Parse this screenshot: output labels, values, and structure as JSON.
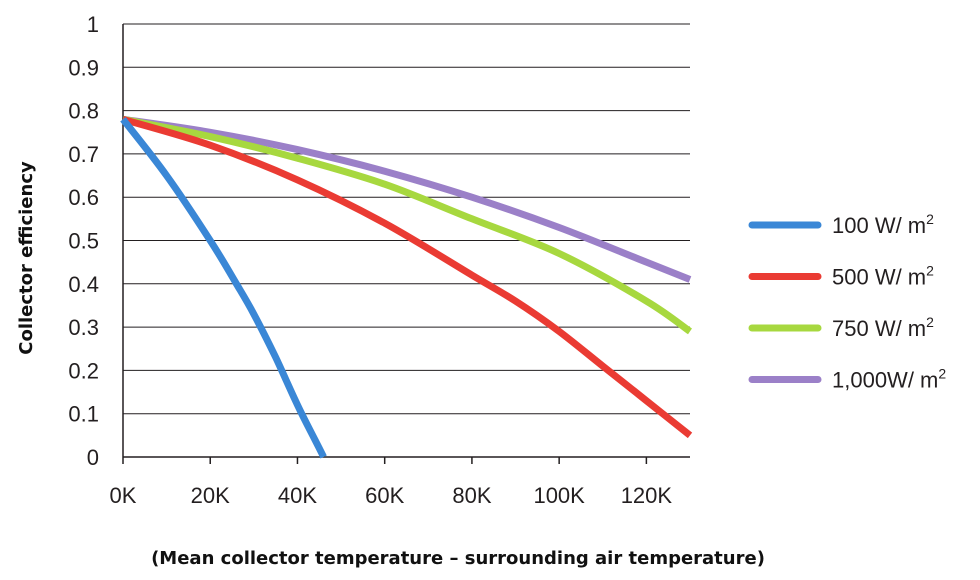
{
  "chart_data": {
    "type": "line",
    "title": "",
    "xlabel": "(Mean collector temperature – surrounding air temperature)",
    "ylabel": "Collector efficiency",
    "xlim": [
      0,
      130
    ],
    "ylim": [
      0,
      1
    ],
    "x_unit_suffix": "K",
    "x_ticks": [
      0,
      20,
      40,
      60,
      80,
      100,
      120
    ],
    "x_tick_labels": [
      "0K",
      "20K",
      "40K",
      "60K",
      "80K",
      "100K",
      "120K"
    ],
    "y_ticks": [
      0,
      0.1,
      0.2,
      0.3,
      0.4,
      0.5,
      0.6,
      0.7,
      0.8,
      0.9,
      1
    ],
    "y_tick_labels": [
      "0",
      "0.1",
      "0.2",
      "0.3",
      "0.4",
      "0.5",
      "0.6",
      "0.7",
      "0.8",
      "0.9",
      "1"
    ],
    "grid": "horizontal",
    "legend_position": "right",
    "series": [
      {
        "name": "100 W/ m",
        "sup": "2",
        "color": "#3a87d6",
        "x": [
          0,
          10,
          20,
          26,
          30,
          35,
          40,
          44,
          46
        ],
        "y": [
          0.78,
          0.65,
          0.5,
          0.4,
          0.33,
          0.23,
          0.12,
          0.04,
          0
        ]
      },
      {
        "name": "500 W/ m",
        "sup": "2",
        "color": "#ea3b33",
        "x": [
          0,
          20,
          40,
          60,
          80,
          90,
          100,
          110,
          120,
          130
        ],
        "y": [
          0.78,
          0.72,
          0.64,
          0.54,
          0.42,
          0.36,
          0.29,
          0.21,
          0.13,
          0.05
        ]
      },
      {
        "name": "750 W/ m",
        "sup": "2",
        "color": "#a7d83f",
        "x": [
          0,
          20,
          40,
          60,
          80,
          100,
          120,
          130
        ],
        "y": [
          0.78,
          0.74,
          0.69,
          0.63,
          0.55,
          0.47,
          0.36,
          0.29
        ]
      },
      {
        "name": "1,000W/ m",
        "sup": "2",
        "color": "#9b80c8",
        "x": [
          0,
          20,
          40,
          60,
          80,
          100,
          120,
          130
        ],
        "y": [
          0.78,
          0.75,
          0.71,
          0.66,
          0.6,
          0.53,
          0.45,
          0.41
        ]
      }
    ]
  }
}
